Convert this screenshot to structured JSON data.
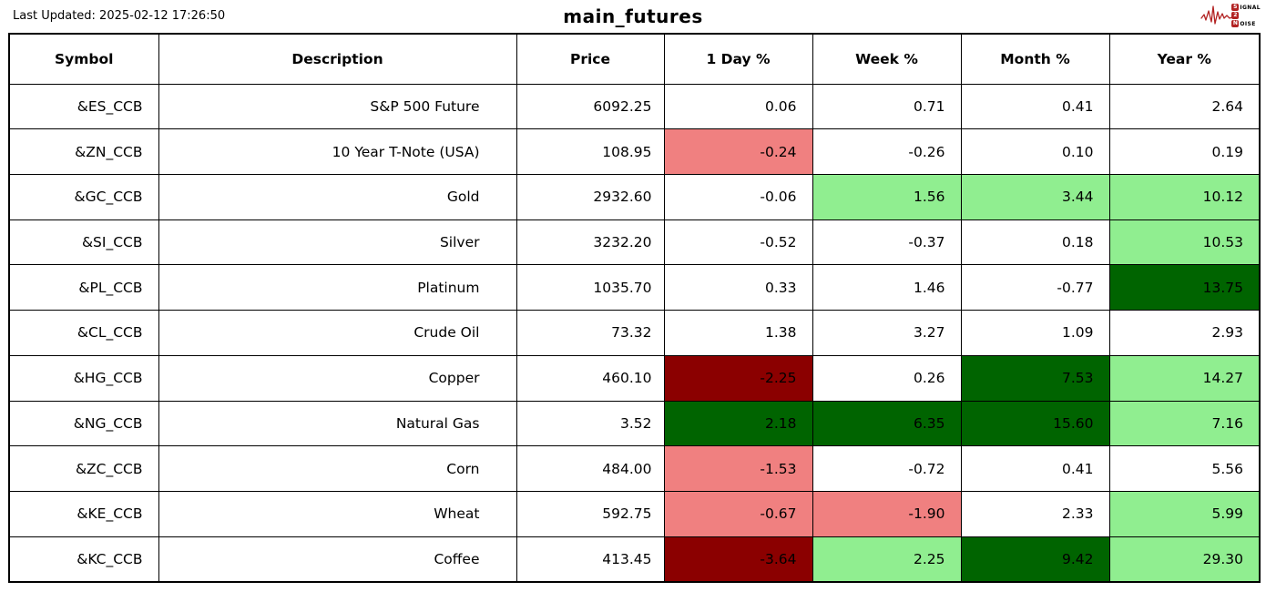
{
  "header": {
    "last_updated": "Last Updated: 2025-02-12 17:26:50",
    "title": "main_futures"
  },
  "logo": {
    "s": "S",
    "signal_rest": "IGNAL",
    "two": "2",
    "n": "N",
    "noise_rest": "OISE",
    "accent_color": "#b22222"
  },
  "colors": {
    "none": "#ffffff",
    "light_red": "#f08080",
    "dark_red": "#8b0000",
    "light_green": "#90ee90",
    "dark_green": "#006400"
  },
  "chart_data": {
    "type": "table",
    "title": "main_futures",
    "last_updated": "2025-02-12 17:26:50",
    "columns": [
      "Symbol",
      "Description",
      "Price",
      "1 Day %",
      "Week %",
      "Month %",
      "Year %"
    ],
    "rows": [
      {
        "symbol": "&ES_CCB",
        "description": "S&P 500 Future",
        "price": "6092.25",
        "day": {
          "value": "0.06",
          "bg": "none"
        },
        "week": {
          "value": "0.71",
          "bg": "none"
        },
        "month": {
          "value": "0.41",
          "bg": "none"
        },
        "year": {
          "value": "2.64",
          "bg": "none"
        }
      },
      {
        "symbol": "&ZN_CCB",
        "description": "10 Year T-Note (USA)",
        "price": "108.95",
        "day": {
          "value": "-0.24",
          "bg": "light_red"
        },
        "week": {
          "value": "-0.26",
          "bg": "none"
        },
        "month": {
          "value": "0.10",
          "bg": "none"
        },
        "year": {
          "value": "0.19",
          "bg": "none"
        }
      },
      {
        "symbol": "&GC_CCB",
        "description": "Gold",
        "price": "2932.60",
        "day": {
          "value": "-0.06",
          "bg": "none"
        },
        "week": {
          "value": "1.56",
          "bg": "light_green"
        },
        "month": {
          "value": "3.44",
          "bg": "light_green"
        },
        "year": {
          "value": "10.12",
          "bg": "light_green"
        }
      },
      {
        "symbol": "&SI_CCB",
        "description": "Silver",
        "price": "3232.20",
        "day": {
          "value": "-0.52",
          "bg": "none"
        },
        "week": {
          "value": "-0.37",
          "bg": "none"
        },
        "month": {
          "value": "0.18",
          "bg": "none"
        },
        "year": {
          "value": "10.53",
          "bg": "light_green"
        }
      },
      {
        "symbol": "&PL_CCB",
        "description": "Platinum",
        "price": "1035.70",
        "day": {
          "value": "0.33",
          "bg": "none"
        },
        "week": {
          "value": "1.46",
          "bg": "none"
        },
        "month": {
          "value": "-0.77",
          "bg": "none"
        },
        "year": {
          "value": "13.75",
          "bg": "dark_green"
        }
      },
      {
        "symbol": "&CL_CCB",
        "description": "Crude Oil",
        "price": "73.32",
        "day": {
          "value": "1.38",
          "bg": "none"
        },
        "week": {
          "value": "3.27",
          "bg": "none"
        },
        "month": {
          "value": "1.09",
          "bg": "none"
        },
        "year": {
          "value": "2.93",
          "bg": "none"
        }
      },
      {
        "symbol": "&HG_CCB",
        "description": "Copper",
        "price": "460.10",
        "day": {
          "value": "-2.25",
          "bg": "dark_red"
        },
        "week": {
          "value": "0.26",
          "bg": "none"
        },
        "month": {
          "value": "7.53",
          "bg": "dark_green"
        },
        "year": {
          "value": "14.27",
          "bg": "light_green"
        }
      },
      {
        "symbol": "&NG_CCB",
        "description": "Natural Gas",
        "price": "3.52",
        "day": {
          "value": "2.18",
          "bg": "dark_green"
        },
        "week": {
          "value": "6.35",
          "bg": "dark_green"
        },
        "month": {
          "value": "15.60",
          "bg": "dark_green"
        },
        "year": {
          "value": "7.16",
          "bg": "light_green"
        }
      },
      {
        "symbol": "&ZC_CCB",
        "description": "Corn",
        "price": "484.00",
        "day": {
          "value": "-1.53",
          "bg": "light_red"
        },
        "week": {
          "value": "-0.72",
          "bg": "none"
        },
        "month": {
          "value": "0.41",
          "bg": "none"
        },
        "year": {
          "value": "5.56",
          "bg": "none"
        }
      },
      {
        "symbol": "&KE_CCB",
        "description": "Wheat",
        "price": "592.75",
        "day": {
          "value": "-0.67",
          "bg": "light_red"
        },
        "week": {
          "value": "-1.90",
          "bg": "light_red"
        },
        "month": {
          "value": "2.33",
          "bg": "none"
        },
        "year": {
          "value": "5.99",
          "bg": "light_green"
        }
      },
      {
        "symbol": "&KC_CCB",
        "description": "Coffee",
        "price": "413.45",
        "day": {
          "value": "-3.64",
          "bg": "dark_red"
        },
        "week": {
          "value": "2.25",
          "bg": "light_green"
        },
        "month": {
          "value": "9.42",
          "bg": "dark_green"
        },
        "year": {
          "value": "29.30",
          "bg": "light_green"
        }
      }
    ]
  }
}
